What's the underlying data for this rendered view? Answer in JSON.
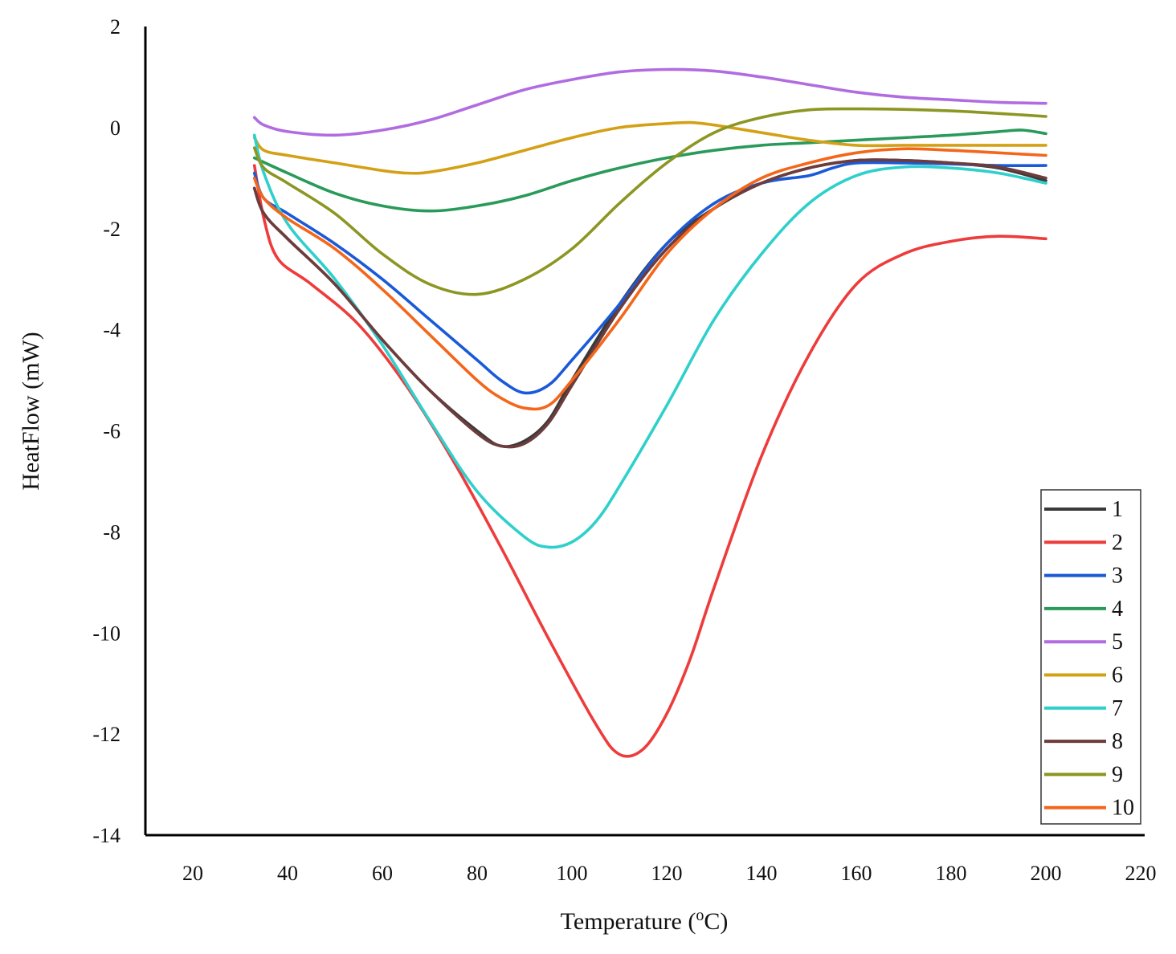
{
  "chart_data": {
    "type": "line",
    "title": "",
    "xlabel": "Temperature (",
    "xlabel_sup": "o",
    "xlabel_tail": "C)",
    "ylabel": "HeatFlow (mW)",
    "xlim": [
      10,
      220
    ],
    "ylim": [
      -14,
      2
    ],
    "xticks": [
      20,
      40,
      60,
      80,
      100,
      120,
      140,
      160,
      180,
      200,
      220
    ],
    "yticks": [
      2,
      0,
      -2,
      -4,
      -6,
      -8,
      -10,
      -12,
      -14
    ],
    "grid": false,
    "legend_position": "bottom-right",
    "series": [
      {
        "name": "1",
        "color": "#3a3a3a",
        "points": [
          [
            33,
            -1.2
          ],
          [
            35,
            -1.7
          ],
          [
            40,
            -2.2
          ],
          [
            50,
            -3.1
          ],
          [
            60,
            -4.2
          ],
          [
            70,
            -5.2
          ],
          [
            80,
            -6.0
          ],
          [
            85,
            -6.3
          ],
          [
            90,
            -6.2
          ],
          [
            95,
            -5.8
          ],
          [
            100,
            -5.0
          ],
          [
            110,
            -3.5
          ],
          [
            120,
            -2.3
          ],
          [
            130,
            -1.6
          ],
          [
            140,
            -1.1
          ],
          [
            150,
            -0.8
          ],
          [
            160,
            -0.65
          ],
          [
            170,
            -0.65
          ],
          [
            180,
            -0.7
          ],
          [
            190,
            -0.8
          ],
          [
            200,
            -1.05
          ]
        ]
      },
      {
        "name": "2",
        "color": "#ee3b3b",
        "points": [
          [
            33,
            -0.75
          ],
          [
            35,
            -1.8
          ],
          [
            38,
            -2.6
          ],
          [
            45,
            -3.1
          ],
          [
            55,
            -3.9
          ],
          [
            65,
            -5.1
          ],
          [
            75,
            -6.6
          ],
          [
            85,
            -8.3
          ],
          [
            95,
            -10.1
          ],
          [
            105,
            -11.8
          ],
          [
            110,
            -12.4
          ],
          [
            115,
            -12.3
          ],
          [
            120,
            -11.6
          ],
          [
            125,
            -10.5
          ],
          [
            130,
            -9.1
          ],
          [
            140,
            -6.5
          ],
          [
            150,
            -4.5
          ],
          [
            160,
            -3.1
          ],
          [
            170,
            -2.5
          ],
          [
            180,
            -2.25
          ],
          [
            190,
            -2.15
          ],
          [
            200,
            -2.2
          ]
        ]
      },
      {
        "name": "3",
        "color": "#1a5ad8",
        "points": [
          [
            33,
            -0.9
          ],
          [
            35,
            -1.4
          ],
          [
            40,
            -1.7
          ],
          [
            50,
            -2.3
          ],
          [
            60,
            -3.0
          ],
          [
            70,
            -3.8
          ],
          [
            80,
            -4.6
          ],
          [
            85,
            -5.0
          ],
          [
            90,
            -5.25
          ],
          [
            95,
            -5.1
          ],
          [
            100,
            -4.6
          ],
          [
            110,
            -3.5
          ],
          [
            120,
            -2.3
          ],
          [
            130,
            -1.5
          ],
          [
            140,
            -1.1
          ],
          [
            150,
            -0.95
          ],
          [
            155,
            -0.8
          ],
          [
            160,
            -0.7
          ],
          [
            170,
            -0.7
          ],
          [
            180,
            -0.72
          ],
          [
            190,
            -0.75
          ],
          [
            200,
            -0.75
          ]
        ]
      },
      {
        "name": "4",
        "color": "#2a9a5a",
        "points": [
          [
            33,
            -0.6
          ],
          [
            40,
            -0.9
          ],
          [
            50,
            -1.3
          ],
          [
            60,
            -1.55
          ],
          [
            70,
            -1.65
          ],
          [
            80,
            -1.55
          ],
          [
            90,
            -1.35
          ],
          [
            100,
            -1.05
          ],
          [
            110,
            -0.8
          ],
          [
            120,
            -0.6
          ],
          [
            130,
            -0.45
          ],
          [
            140,
            -0.35
          ],
          [
            150,
            -0.3
          ],
          [
            160,
            -0.25
          ],
          [
            170,
            -0.2
          ],
          [
            180,
            -0.15
          ],
          [
            190,
            -0.08
          ],
          [
            195,
            -0.05
          ],
          [
            200,
            -0.12
          ]
        ]
      },
      {
        "name": "5",
        "color": "#b06ce0",
        "points": [
          [
            33,
            0.2
          ],
          [
            35,
            0.05
          ],
          [
            40,
            -0.08
          ],
          [
            50,
            -0.15
          ],
          [
            60,
            -0.05
          ],
          [
            70,
            0.15
          ],
          [
            80,
            0.45
          ],
          [
            90,
            0.75
          ],
          [
            100,
            0.95
          ],
          [
            110,
            1.1
          ],
          [
            120,
            1.15
          ],
          [
            130,
            1.12
          ],
          [
            140,
            1.0
          ],
          [
            150,
            0.85
          ],
          [
            160,
            0.7
          ],
          [
            170,
            0.6
          ],
          [
            180,
            0.55
          ],
          [
            190,
            0.5
          ],
          [
            200,
            0.48
          ]
        ]
      },
      {
        "name": "6",
        "color": "#d4a015",
        "points": [
          [
            33,
            -0.2
          ],
          [
            35,
            -0.45
          ],
          [
            40,
            -0.55
          ],
          [
            50,
            -0.7
          ],
          [
            60,
            -0.85
          ],
          [
            65,
            -0.9
          ],
          [
            70,
            -0.88
          ],
          [
            80,
            -0.7
          ],
          [
            90,
            -0.45
          ],
          [
            100,
            -0.2
          ],
          [
            110,
            0.0
          ],
          [
            120,
            0.08
          ],
          [
            125,
            0.1
          ],
          [
            130,
            0.05
          ],
          [
            140,
            -0.1
          ],
          [
            150,
            -0.25
          ],
          [
            160,
            -0.35
          ],
          [
            170,
            -0.35
          ],
          [
            180,
            -0.35
          ],
          [
            190,
            -0.35
          ],
          [
            200,
            -0.35
          ]
        ]
      },
      {
        "name": "7",
        "color": "#2fd0cc",
        "points": [
          [
            33,
            -0.15
          ],
          [
            35,
            -0.9
          ],
          [
            40,
            -1.9
          ],
          [
            50,
            -3.0
          ],
          [
            60,
            -4.3
          ],
          [
            70,
            -5.8
          ],
          [
            80,
            -7.2
          ],
          [
            90,
            -8.1
          ],
          [
            95,
            -8.3
          ],
          [
            100,
            -8.2
          ],
          [
            105,
            -7.8
          ],
          [
            110,
            -7.1
          ],
          [
            120,
            -5.5
          ],
          [
            130,
            -3.8
          ],
          [
            140,
            -2.5
          ],
          [
            150,
            -1.5
          ],
          [
            160,
            -0.95
          ],
          [
            170,
            -0.78
          ],
          [
            180,
            -0.8
          ],
          [
            190,
            -0.9
          ],
          [
            200,
            -1.1
          ]
        ]
      },
      {
        "name": "8",
        "color": "#6e3c3c",
        "points": [
          [
            33,
            -1.2
          ],
          [
            35,
            -1.7
          ],
          [
            40,
            -2.2
          ],
          [
            50,
            -3.1
          ],
          [
            60,
            -4.2
          ],
          [
            70,
            -5.2
          ],
          [
            80,
            -6.05
          ],
          [
            85,
            -6.3
          ],
          [
            90,
            -6.25
          ],
          [
            95,
            -5.85
          ],
          [
            100,
            -5.1
          ],
          [
            110,
            -3.6
          ],
          [
            120,
            -2.4
          ],
          [
            130,
            -1.6
          ],
          [
            140,
            -1.1
          ],
          [
            150,
            -0.8
          ],
          [
            160,
            -0.65
          ],
          [
            170,
            -0.65
          ],
          [
            180,
            -0.7
          ],
          [
            190,
            -0.78
          ],
          [
            200,
            -1.0
          ]
        ]
      },
      {
        "name": "9",
        "color": "#8c9622",
        "points": [
          [
            33,
            -0.4
          ],
          [
            35,
            -0.8
          ],
          [
            40,
            -1.1
          ],
          [
            50,
            -1.7
          ],
          [
            60,
            -2.5
          ],
          [
            70,
            -3.1
          ],
          [
            80,
            -3.3
          ],
          [
            90,
            -3.0
          ],
          [
            100,
            -2.4
          ],
          [
            110,
            -1.5
          ],
          [
            120,
            -0.7
          ],
          [
            130,
            -0.1
          ],
          [
            140,
            0.2
          ],
          [
            150,
            0.35
          ],
          [
            160,
            0.37
          ],
          [
            170,
            0.36
          ],
          [
            180,
            0.33
          ],
          [
            190,
            0.28
          ],
          [
            200,
            0.22
          ]
        ]
      },
      {
        "name": "10",
        "color": "#f4661a",
        "points": [
          [
            33,
            -1.0
          ],
          [
            35,
            -1.4
          ],
          [
            40,
            -1.8
          ],
          [
            50,
            -2.4
          ],
          [
            60,
            -3.2
          ],
          [
            70,
            -4.1
          ],
          [
            80,
            -5.0
          ],
          [
            85,
            -5.35
          ],
          [
            90,
            -5.55
          ],
          [
            95,
            -5.5
          ],
          [
            100,
            -5.0
          ],
          [
            110,
            -3.8
          ],
          [
            120,
            -2.5
          ],
          [
            130,
            -1.6
          ],
          [
            140,
            -1.0
          ],
          [
            150,
            -0.7
          ],
          [
            160,
            -0.5
          ],
          [
            170,
            -0.42
          ],
          [
            180,
            -0.45
          ],
          [
            190,
            -0.5
          ],
          [
            200,
            -0.55
          ]
        ]
      }
    ]
  }
}
